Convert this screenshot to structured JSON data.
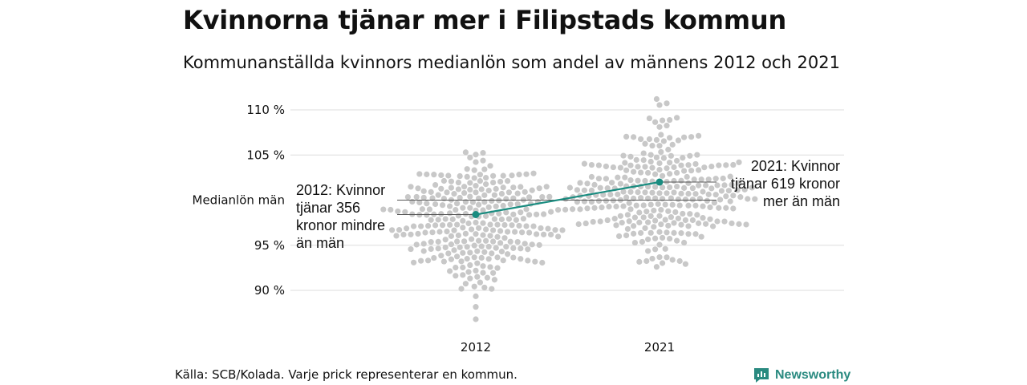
{
  "title": "Kvinnorna tjänar mer i Filipstads kommun",
  "subtitle": "Kommunanställda kvinnors medianlön som andel av männens 2012 och 2021",
  "source": "Källa: SCB/Kolada. Varje prick representerar en kommun.",
  "brand": "Newsworthy",
  "colors": {
    "dots": "#c8c8c8",
    "highlight": "#1a8c80",
    "grid": "#dddddd",
    "reference": "#555555"
  },
  "chart_data": {
    "type": "scatter",
    "chart_style": "beeswarm",
    "categories": [
      "2012",
      "2021"
    ],
    "y_ticks": [
      {
        "value": 110,
        "label": "110 %"
      },
      {
        "value": 105,
        "label": "105 %"
      },
      {
        "value": 95,
        "label": "95 %"
      },
      {
        "value": 90,
        "label": "90 %"
      }
    ],
    "reference": {
      "value": 100,
      "label": "Medianlön män"
    },
    "ylim": [
      86,
      112
    ],
    "distribution": [
      {
        "category": "2012",
        "n": 290,
        "min": 86.8,
        "max": 105.3,
        "median": 97.5
      },
      {
        "category": "2021",
        "n": 290,
        "min": 92.6,
        "max": 111.2,
        "median": 100.8
      }
    ],
    "highlight": {
      "name": "Filipstad",
      "values": [
        {
          "category": "2012",
          "value": 98.4
        },
        {
          "category": "2021",
          "value": 102.0
        }
      ]
    },
    "annotations": [
      {
        "category": "2012",
        "lines": [
          "2012: Kvinnor",
          "tjänar 356",
          "kronor mindre",
          "än män"
        ]
      },
      {
        "category": "2021",
        "lines": [
          "2021: Kvinnor",
          "tjänar 619 kronor",
          "mer än män"
        ]
      }
    ],
    "grid": true
  }
}
